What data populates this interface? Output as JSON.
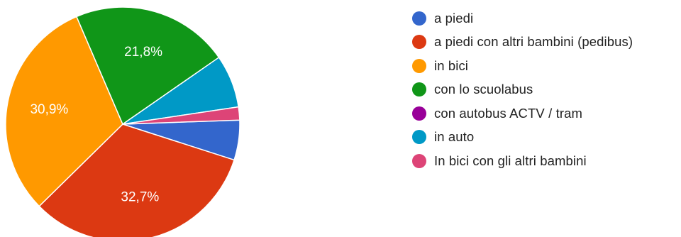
{
  "chart_data": {
    "type": "pie",
    "slices": [
      {
        "label": "a piedi",
        "value": 5.5,
        "color": "#3366cc",
        "display": ""
      },
      {
        "label": "a piedi con altri bambini (pedibus)",
        "value": 32.7,
        "color": "#dc3912",
        "display": "32,7%"
      },
      {
        "label": "in bici",
        "value": 30.9,
        "color": "#ff9900",
        "display": "30,9%"
      },
      {
        "label": "con lo scuolabus",
        "value": 21.8,
        "color": "#109618",
        "display": "21,8%"
      },
      {
        "label": "con autobus ACTV / tram",
        "value": 0,
        "color": "#990099",
        "display": ""
      },
      {
        "label": "in auto",
        "value": 7.3,
        "color": "#0099c6",
        "display": ""
      },
      {
        "label": "In bici con gli altri bambini",
        "value": 1.8,
        "color": "#dd4477",
        "display": ""
      }
    ],
    "legend_position": "right"
  }
}
